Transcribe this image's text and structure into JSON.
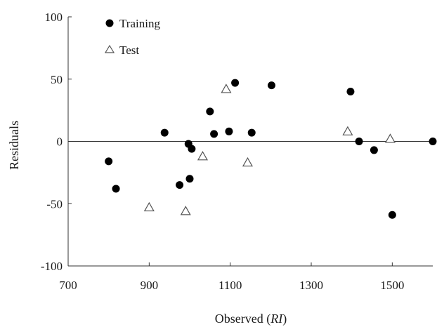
{
  "chart_data": {
    "type": "scatter",
    "xlabel": "Observed (",
    "xlabel_unit": "RI",
    "xlabel_close": ")",
    "ylabel": "Residuals",
    "xlim": [
      700,
      1600
    ],
    "ylim": [
      -100,
      100
    ],
    "xticks": [
      700,
      900,
      1100,
      1300,
      1500
    ],
    "yticks": [
      100,
      50,
      0,
      -50,
      -100
    ],
    "zero_line": true,
    "grid": false,
    "legend_position": "top-left",
    "series": [
      {
        "name": "Training",
        "marker": "filled-circle",
        "color": "#000000",
        "points": [
          [
            800,
            -16
          ],
          [
            818,
            -38
          ],
          [
            938,
            7
          ],
          [
            975,
            -35
          ],
          [
            997,
            -2
          ],
          [
            1000,
            -30
          ],
          [
            1005,
            -6
          ],
          [
            1050,
            24
          ],
          [
            1060,
            6
          ],
          [
            1097,
            8
          ],
          [
            1112,
            47
          ],
          [
            1153,
            7
          ],
          [
            1202,
            45
          ],
          [
            1397,
            40
          ],
          [
            1418,
            0
          ],
          [
            1455,
            -7
          ],
          [
            1500,
            -59
          ],
          [
            1600,
            0
          ]
        ]
      },
      {
        "name": "Test",
        "marker": "open-triangle",
        "color": "#555555",
        "points": [
          [
            900,
            -53
          ],
          [
            990,
            -56
          ],
          [
            1032,
            -12
          ],
          [
            1090,
            42
          ],
          [
            1143,
            -17
          ],
          [
            1390,
            8
          ],
          [
            1495,
            2
          ]
        ]
      }
    ]
  }
}
